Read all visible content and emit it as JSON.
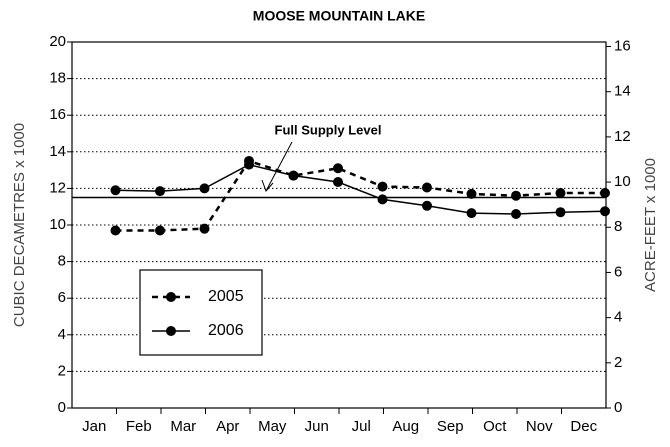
{
  "chart_data": {
    "type": "line",
    "title": "MOOSE MOUNTAIN LAKE",
    "y_label": "CUBIC DECAMETRES x 1000",
    "y2_label": "ACRE-FEET x 1000",
    "categories": [
      "Jan",
      "Feb",
      "Mar",
      "Apr",
      "May",
      "Jun",
      "Jul",
      "Aug",
      "Sep",
      "Oct",
      "Nov",
      "Dec"
    ],
    "series": [
      {
        "name": "2005",
        "color": "#000000",
        "line_style": "dashed",
        "values": [
          9.7,
          9.7,
          9.8,
          13.5,
          12.7,
          13.1,
          12.1,
          12.05,
          11.7,
          11.6,
          11.75,
          11.75
        ]
      },
      {
        "name": "2006",
        "color": "#000000",
        "line_style": "solid",
        "values": [
          11.9,
          11.85,
          12.0,
          13.3,
          12.7,
          12.35,
          11.4,
          11.05,
          10.65,
          10.6,
          10.7,
          10.75
        ]
      }
    ],
    "reference_line": {
      "value": 11.5,
      "label": "Full Supply Level"
    },
    "ylim": [
      0,
      20
    ],
    "yticks": [
      0,
      2,
      4,
      6,
      8,
      10,
      12,
      14,
      16,
      18,
      20
    ],
    "y2lim": [
      0,
      16.2
    ],
    "y2ticks": [
      0,
      2,
      4,
      6,
      8,
      10,
      12,
      14,
      16
    ],
    "grid": true,
    "legend": "lower left"
  }
}
